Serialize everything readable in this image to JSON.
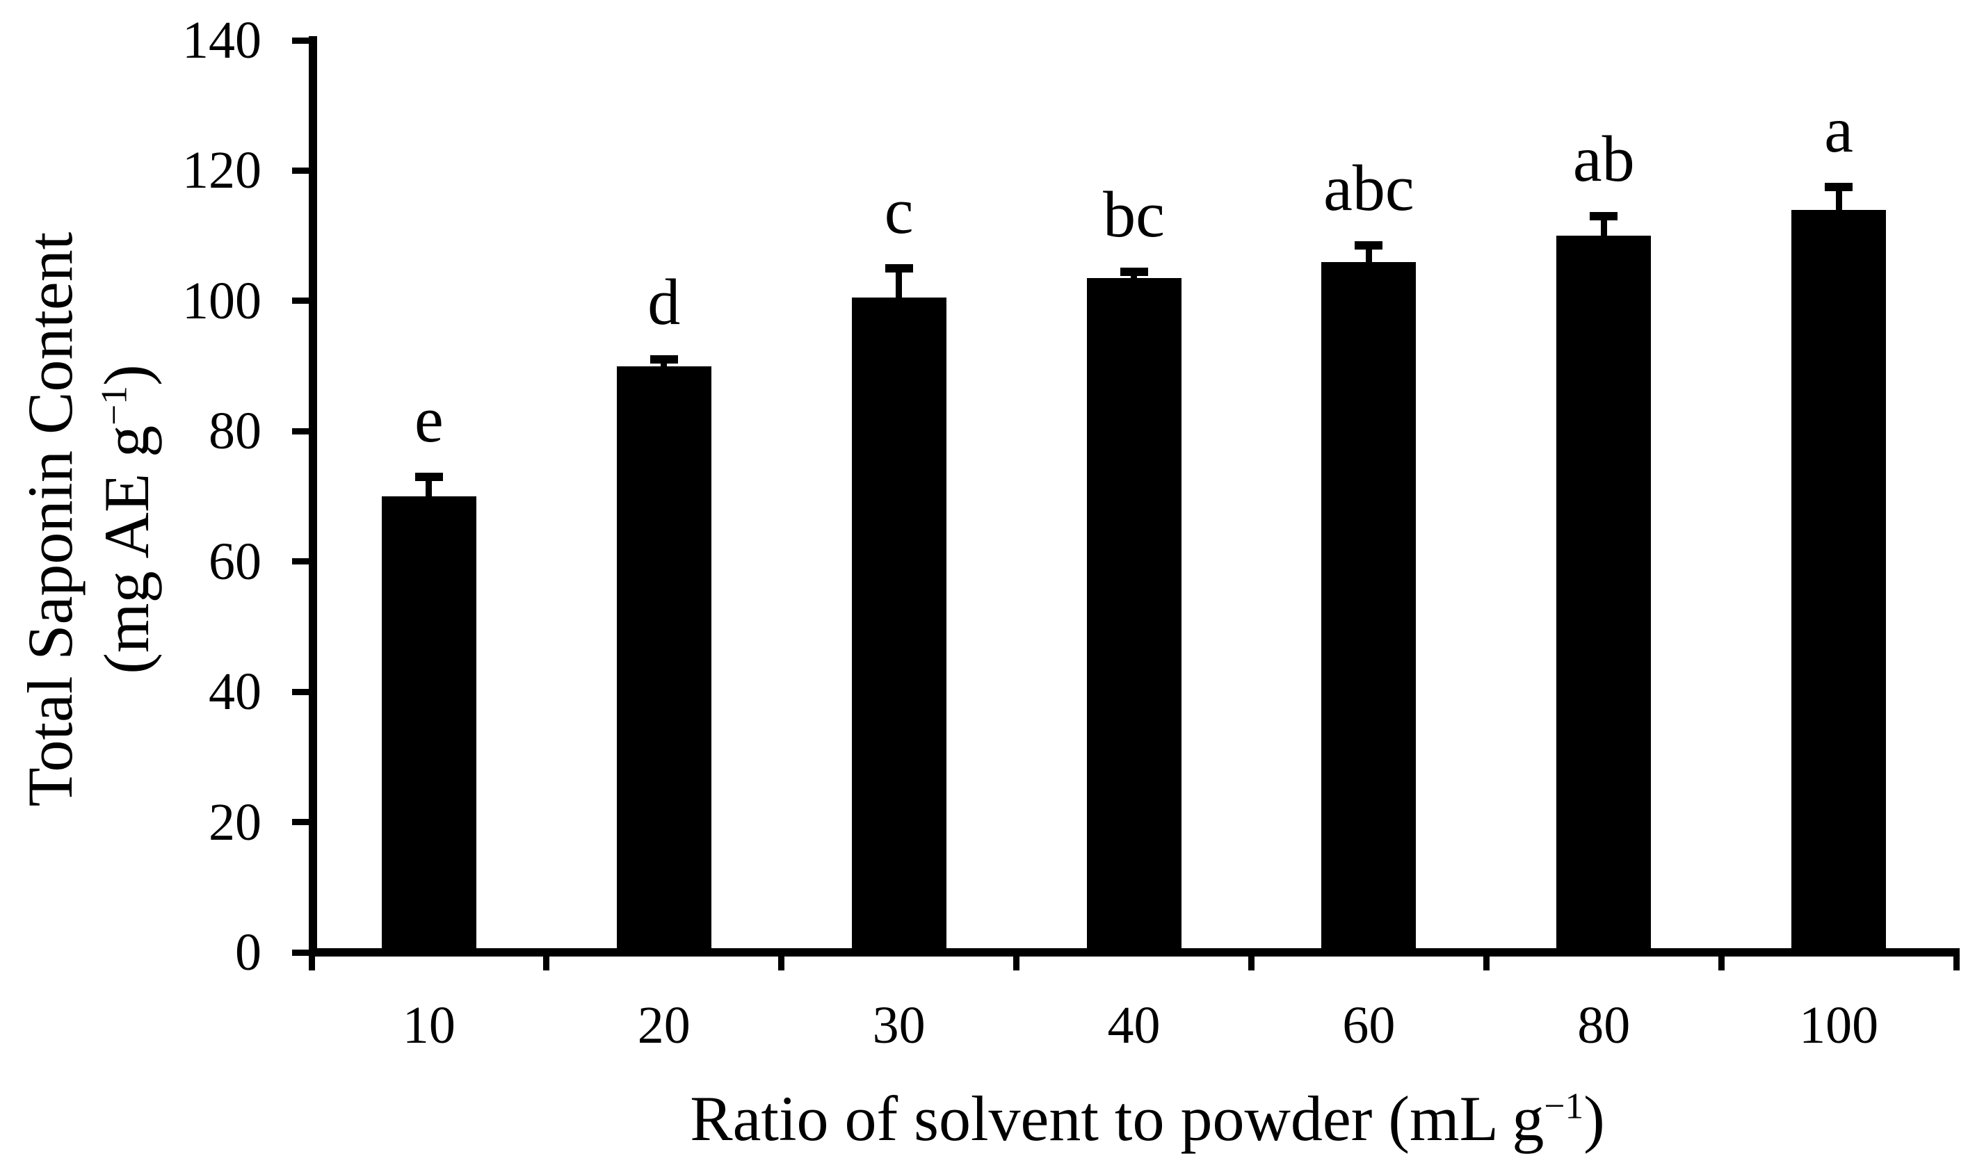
{
  "figure": {
    "background": "#ffffff",
    "ink_color": "#000000"
  },
  "chart_data": {
    "type": "bar",
    "title": "",
    "xlabel": "Ratio of solvent to powder (mL g−1)",
    "ylabel": "Total Saponin Content (mg AE g−1)",
    "xlabel_parts": {
      "base": "Ratio of solvent to powder (mL g",
      "sup": "−1",
      "close": ")"
    },
    "ylabel_parts": {
      "line1": "Total Saponin Content",
      "line2_base": "(mg AE g",
      "line2_sup": "−1",
      "line2_close": ")"
    },
    "categories": [
      "10",
      "20",
      "30",
      "40",
      "60",
      "80",
      "100"
    ],
    "values": [
      70,
      90,
      100.5,
      103.5,
      106,
      110,
      114
    ],
    "upper_errors": [
      3,
      1,
      4.5,
      1,
      2.5,
      3,
      3.5
    ],
    "significance_letters": [
      "e",
      "d",
      "c",
      "bc",
      "abc",
      "ab",
      "a"
    ],
    "y_ticks": [
      0,
      20,
      40,
      60,
      80,
      100,
      120,
      140
    ],
    "ylim": [
      0,
      140
    ],
    "bar_color": "#000000",
    "error_bars": "upper only, capped",
    "grid": false,
    "legend": false
  }
}
